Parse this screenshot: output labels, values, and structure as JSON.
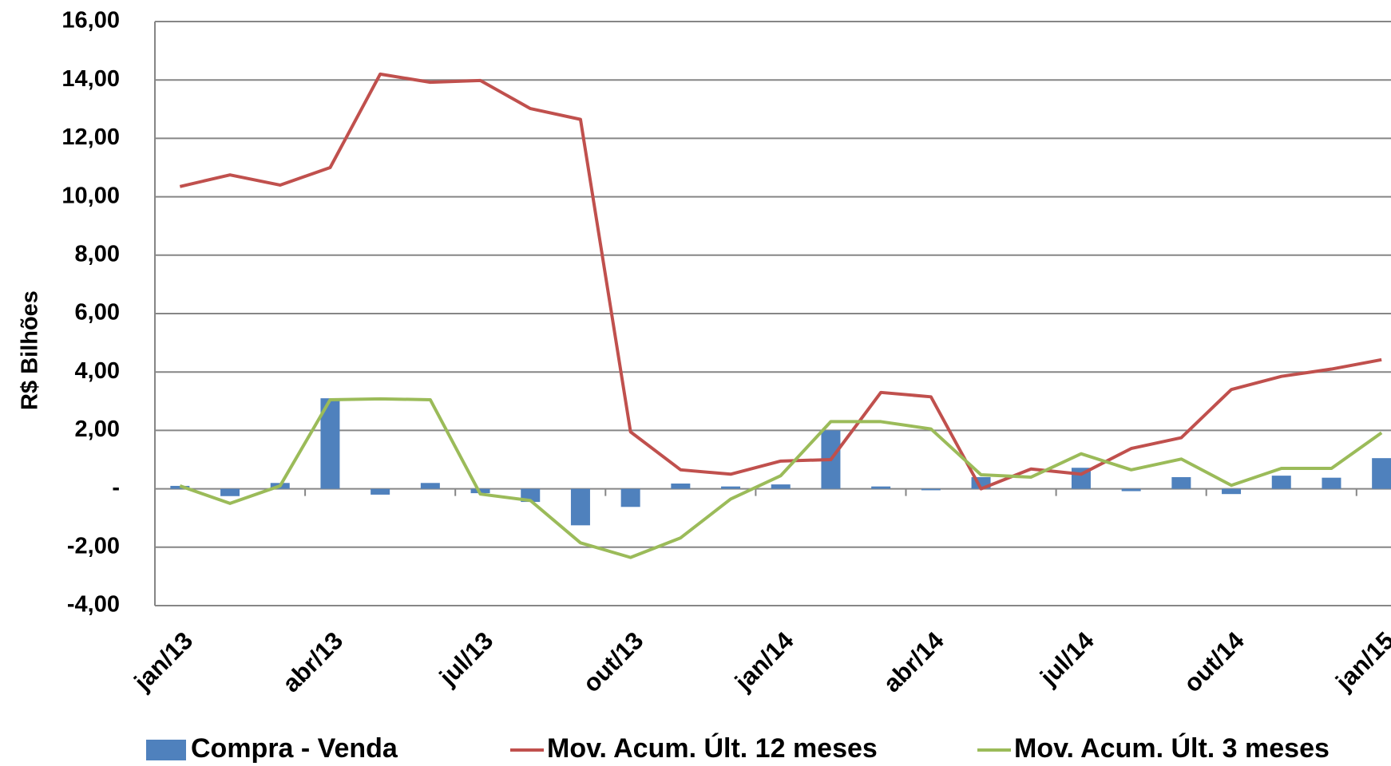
{
  "chart_data": {
    "type": "bar-line",
    "y_axis_title": "R$ Bilhões",
    "categories": [
      "jan/13",
      null,
      null,
      "abr/13",
      null,
      null,
      "jul/13",
      null,
      null,
      "out/13",
      null,
      null,
      "jan/14",
      null,
      null,
      "abr/14",
      null,
      null,
      "jul/14",
      null,
      null,
      "out/14",
      null,
      null,
      "jan/15"
    ],
    "series": [
      {
        "name": "Compra - Venda",
        "type": "bar",
        "color": "#4f81bd",
        "values": [
          0.1,
          -0.25,
          0.2,
          3.1,
          -0.2,
          0.2,
          -0.15,
          -0.45,
          -1.25,
          -0.62,
          0.18,
          0.08,
          0.15,
          2.0,
          0.08,
          -0.05,
          0.4,
          0,
          0.72,
          -0.08,
          0.4,
          -0.18,
          0.45,
          0.38,
          1.05
        ]
      },
      {
        "name": "Mov. Acum. Últ. 12 meses",
        "type": "line",
        "color": "#c0504d",
        "values": [
          10.35,
          10.75,
          10.4,
          11.0,
          14.2,
          13.92,
          13.98,
          13.02,
          12.65,
          1.95,
          0.65,
          0.5,
          0.95,
          1.0,
          3.3,
          3.15,
          0.0,
          0.68,
          0.5,
          1.38,
          1.75,
          3.4,
          3.85,
          4.1,
          4.42
        ]
      },
      {
        "name": "Mov. Acum. Últ. 3 meses",
        "type": "line",
        "color": "#9bbb59",
        "values": [
          0.1,
          -0.5,
          0.1,
          3.05,
          3.08,
          3.05,
          -0.18,
          -0.4,
          -1.85,
          -2.35,
          -1.68,
          -0.35,
          0.45,
          2.3,
          2.3,
          2.05,
          0.48,
          0.4,
          1.2,
          0.65,
          1.02,
          0.12,
          0.7,
          0.7,
          1.92
        ]
      }
    ],
    "ylim": [
      -4,
      16
    ],
    "yticks": [
      {
        "value": -4,
        "label": "-4,00"
      },
      {
        "value": -2,
        "label": "-2,00"
      },
      {
        "value": 0,
        "label": "-"
      },
      {
        "value": 2,
        "label": "2,00"
      },
      {
        "value": 4,
        "label": "4,00"
      },
      {
        "value": 6,
        "label": "6,00"
      },
      {
        "value": 8,
        "label": "8,00"
      },
      {
        "value": 10,
        "label": "10,00"
      },
      {
        "value": 12,
        "label": "12,00"
      },
      {
        "value": 14,
        "label": "14,00"
      },
      {
        "value": 16,
        "label": "16,00"
      }
    ],
    "grid": true,
    "legend": "bottom"
  }
}
